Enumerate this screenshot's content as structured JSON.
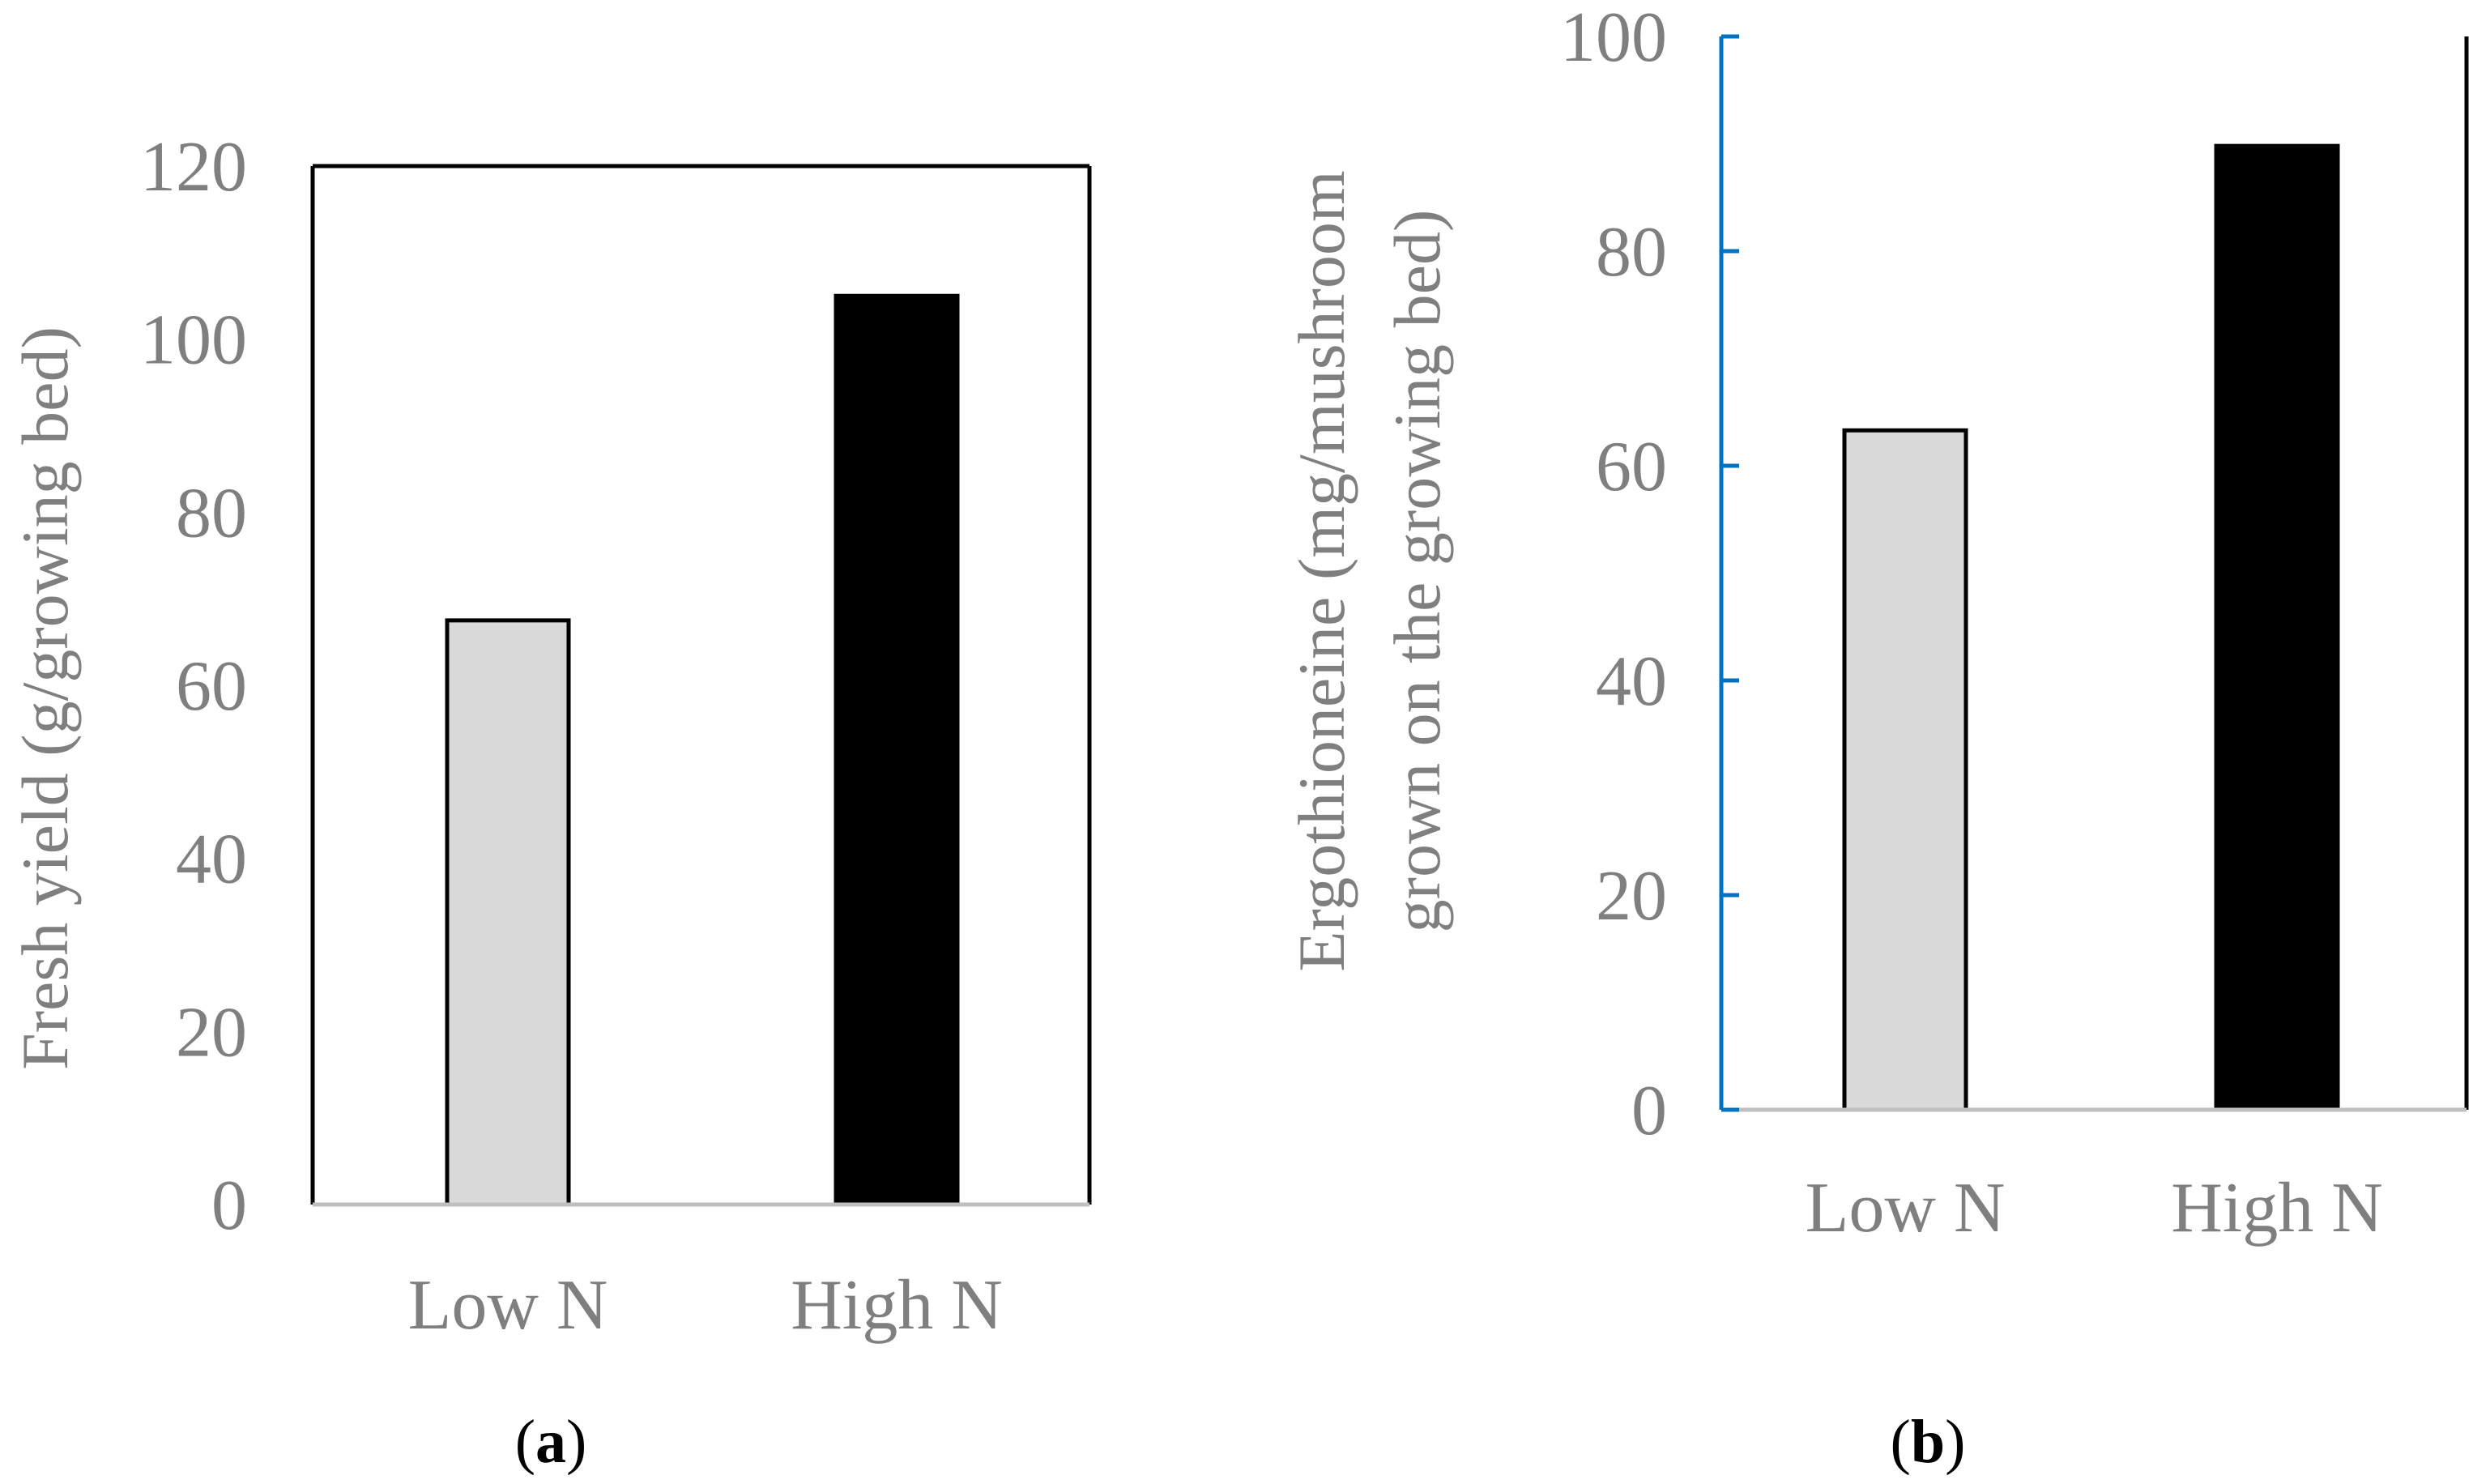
{
  "chart_data": [
    {
      "type": "bar",
      "panel": "(a)",
      "panel_letter": "a",
      "categories": [
        "Low N",
        "High N"
      ],
      "values": [
        67.5,
        105
      ],
      "ylabel": "Fresh yield (g/growing bed)",
      "ylabel_lines": [
        "Fresh yield (g/growing bed)"
      ],
      "xlabel": "",
      "ylim": [
        0,
        120
      ],
      "yticks": [
        0,
        20,
        40,
        60,
        80,
        100,
        120
      ],
      "bar_colors": [
        "#d9d9d9",
        "#000000"
      ],
      "axis_color": "#000000",
      "grid": false
    },
    {
      "type": "bar",
      "panel": "(b)",
      "panel_letter": "b",
      "categories": [
        "Low N",
        "High N"
      ],
      "values": [
        63.3,
        89.8
      ],
      "ylabel": "Ergothioneine (mg/mushroom grown on the growing bed)",
      "ylabel_lines": [
        "Ergothioneine (mg/mushroom",
        "grown on the growing bed)"
      ],
      "xlabel": "",
      "ylim": [
        0,
        100
      ],
      "yticks": [
        0,
        20,
        40,
        60,
        80,
        100
      ],
      "bar_colors": [
        "#d9d9d9",
        "#000000"
      ],
      "axis_color": "#0070c0",
      "grid": false
    }
  ]
}
